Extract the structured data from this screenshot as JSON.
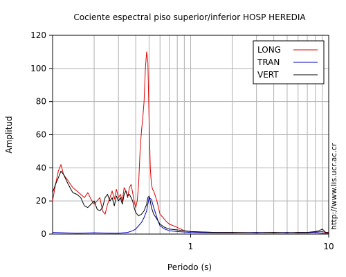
{
  "chart_data": {
    "type": "line",
    "title": "Cociente espectral piso superior/inferior  HOSP HEREDIA",
    "xlabel": "Periodo (s)",
    "ylabel": "Amplitud",
    "x_scale": "log",
    "xlim": [
      0.1,
      10
    ],
    "ylim": [
      0,
      120
    ],
    "x_ticks": [
      {
        "value": 1,
        "label": "1"
      },
      {
        "value": 10,
        "label": "10"
      }
    ],
    "y_ticks": [
      0,
      20,
      40,
      60,
      80,
      100,
      120
    ],
    "grid": true,
    "legend_position": "top-right",
    "watermark": "http://www.lis.ucr.ac.cr",
    "series": [
      {
        "name": "LONG",
        "color": "#e00000",
        "x": [
          0.1,
          0.105,
          0.11,
          0.115,
          0.12,
          0.13,
          0.14,
          0.15,
          0.16,
          0.17,
          0.18,
          0.19,
          0.2,
          0.21,
          0.22,
          0.23,
          0.24,
          0.25,
          0.26,
          0.27,
          0.28,
          0.29,
          0.3,
          0.31,
          0.32,
          0.33,
          0.34,
          0.35,
          0.36,
          0.37,
          0.38,
          0.39,
          0.4,
          0.41,
          0.42,
          0.43,
          0.44,
          0.45,
          0.46,
          0.47,
          0.48,
          0.49,
          0.5,
          0.51,
          0.52,
          0.53,
          0.54,
          0.55,
          0.57,
          0.6,
          0.63,
          0.66,
          0.7,
          0.75,
          0.8,
          0.85,
          0.9,
          1.0,
          1.2,
          1.5,
          2,
          3,
          4,
          5,
          6,
          7,
          8,
          9,
          9.5,
          10
        ],
        "y": [
          20,
          30,
          38,
          42,
          36,
          32,
          28,
          26,
          24,
          22,
          25,
          21,
          18,
          20,
          22,
          14,
          12,
          18,
          22,
          26,
          21,
          27,
          22,
          24,
          20,
          28,
          26,
          22,
          28,
          30,
          25,
          20,
          16,
          20,
          30,
          50,
          62,
          70,
          80,
          100,
          110,
          104,
          70,
          40,
          30,
          27,
          26,
          24,
          20,
          12,
          10,
          8,
          6,
          5,
          4,
          3,
          2,
          1.5,
          1.2,
          1,
          1,
          0.8,
          1,
          0.8,
          1,
          1,
          1.3,
          1.5,
          1,
          1
        ]
      },
      {
        "name": "TRAN",
        "color": "#0000c0",
        "x": [
          0.1,
          0.15,
          0.2,
          0.25,
          0.3,
          0.35,
          0.38,
          0.4,
          0.42,
          0.44,
          0.46,
          0.48,
          0.5,
          0.52,
          0.54,
          0.56,
          0.58,
          0.6,
          0.65,
          0.7,
          0.8,
          1.0,
          1.5,
          2,
          3,
          4,
          5,
          6,
          7,
          8,
          9,
          10
        ],
        "y": [
          1,
          0.5,
          0.8,
          0.6,
          0.5,
          1,
          2,
          3,
          5,
          7,
          10,
          14,
          22,
          21,
          16,
          12,
          8,
          5,
          3,
          2,
          1.5,
          1,
          0.8,
          0.8,
          1,
          0.8,
          1,
          0.7,
          0.8,
          1,
          0.5,
          0.5
        ]
      },
      {
        "name": "VERT",
        "color": "#000000",
        "x": [
          0.1,
          0.105,
          0.11,
          0.115,
          0.12,
          0.13,
          0.14,
          0.15,
          0.16,
          0.17,
          0.18,
          0.19,
          0.2,
          0.21,
          0.22,
          0.23,
          0.24,
          0.25,
          0.26,
          0.27,
          0.28,
          0.29,
          0.3,
          0.31,
          0.32,
          0.33,
          0.34,
          0.35,
          0.36,
          0.37,
          0.38,
          0.39,
          0.4,
          0.42,
          0.44,
          0.46,
          0.48,
          0.49,
          0.5,
          0.51,
          0.52,
          0.54,
          0.56,
          0.58,
          0.6,
          0.65,
          0.7,
          0.8,
          0.9,
          1.0,
          1.5,
          2,
          3,
          4,
          5,
          6,
          7,
          8,
          8.5,
          9,
          9.5,
          10
        ],
        "y": [
          25,
          30,
          34,
          38,
          36,
          30,
          25,
          24,
          22,
          17,
          16,
          18,
          20,
          15,
          14,
          16,
          22,
          24,
          20,
          22,
          17,
          23,
          20,
          22,
          18,
          24,
          26,
          23,
          24,
          22,
          20,
          16,
          13,
          11,
          12,
          14,
          18,
          22,
          23,
          20,
          16,
          12,
          10,
          8,
          6,
          4,
          3,
          2.5,
          2,
          1.5,
          1,
          1,
          0.8,
          1,
          0.8,
          1,
          1,
          1.5,
          2,
          3,
          1,
          0.8
        ]
      }
    ]
  }
}
